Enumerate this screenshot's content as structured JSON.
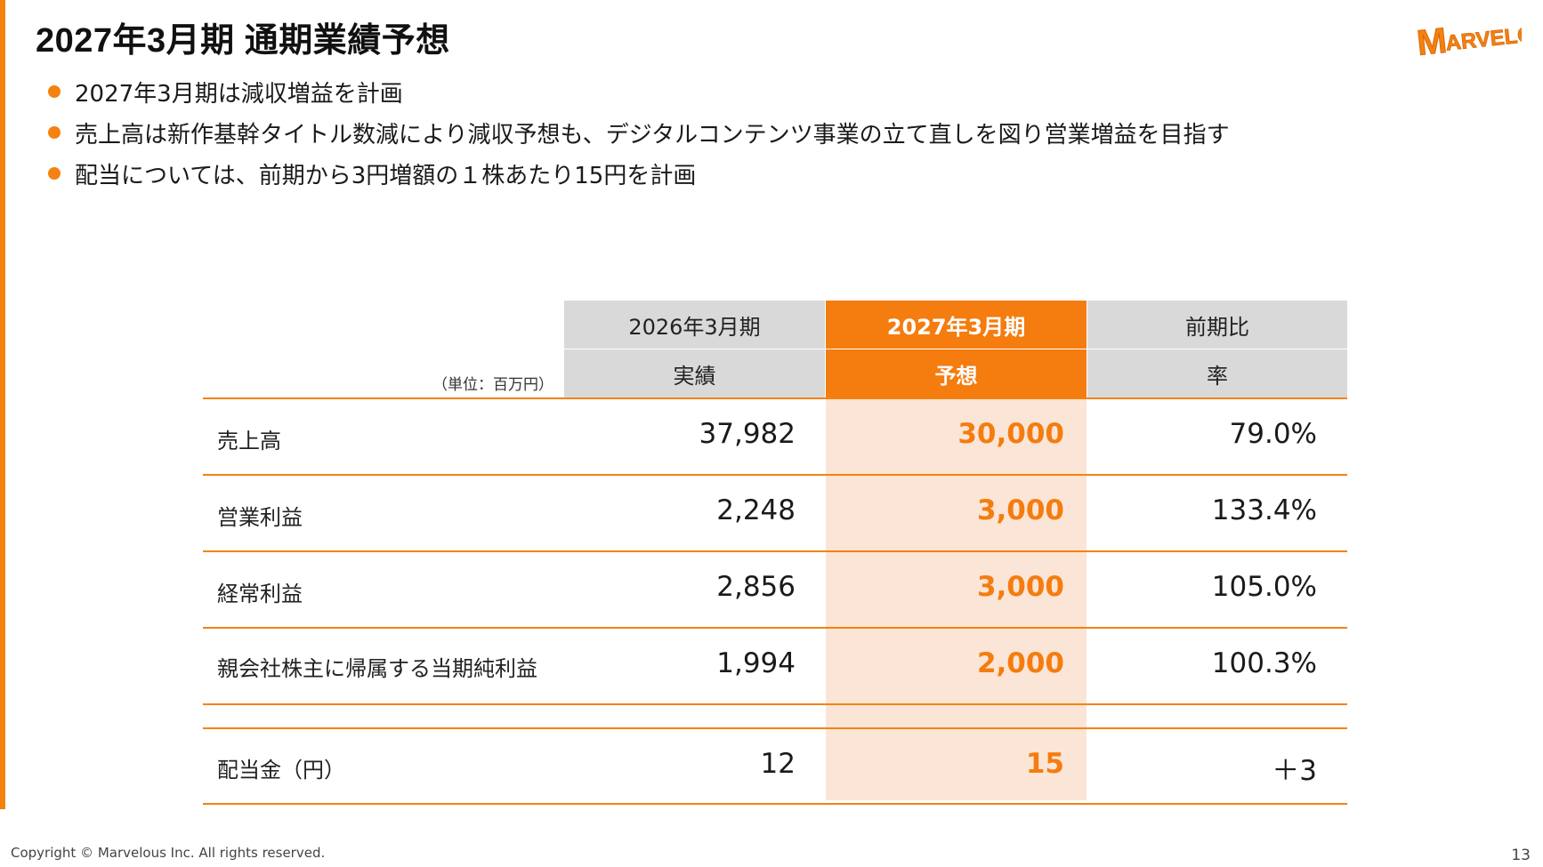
{
  "title": "2027年3月期 通期業績予想",
  "logo_text": "MARVELOUS!",
  "bullets": [
    "2027年3月期は減収増益を計画",
    "売上高は新作基幹タイトル数減により減収予想も、デジタルコンテンツ事業の立て直しを図り営業増益を目指す",
    "配当については、前期から3円増額の１株あたり15円を計画"
  ],
  "table": {
    "unit": "（単位：百万円）",
    "headers": {
      "prev": {
        "top": "2026年3月期",
        "bottom": "実績"
      },
      "forecast": {
        "top": "2027年3月期",
        "bottom": "予想"
      },
      "ratio": {
        "top": "前期比",
        "bottom": "率"
      }
    },
    "rows": [
      {
        "label": "売上高",
        "prev": "37,982",
        "forecast": "30,000",
        "ratio": "79.0%"
      },
      {
        "label": "営業利益",
        "prev": "2,248",
        "forecast": "3,000",
        "ratio": "133.4%"
      },
      {
        "label": "経常利益",
        "prev": "2,856",
        "forecast": "3,000",
        "ratio": "105.0%"
      },
      {
        "label": "親会社株主に帰属する当期純利益",
        "prev": "1,994",
        "forecast": "2,000",
        "ratio": "100.3%"
      }
    ],
    "dividend": {
      "label": "配当金（円）",
      "prev": "12",
      "forecast": "15",
      "ratio": "＋3"
    }
  },
  "footer": "Copyright © Marvelous Inc. All rights reserved.",
  "page_number": "13",
  "colors": {
    "accent": "#f57c0f",
    "header_grey": "#d9d9d9",
    "forecast_shade": "#fbe5d6"
  }
}
